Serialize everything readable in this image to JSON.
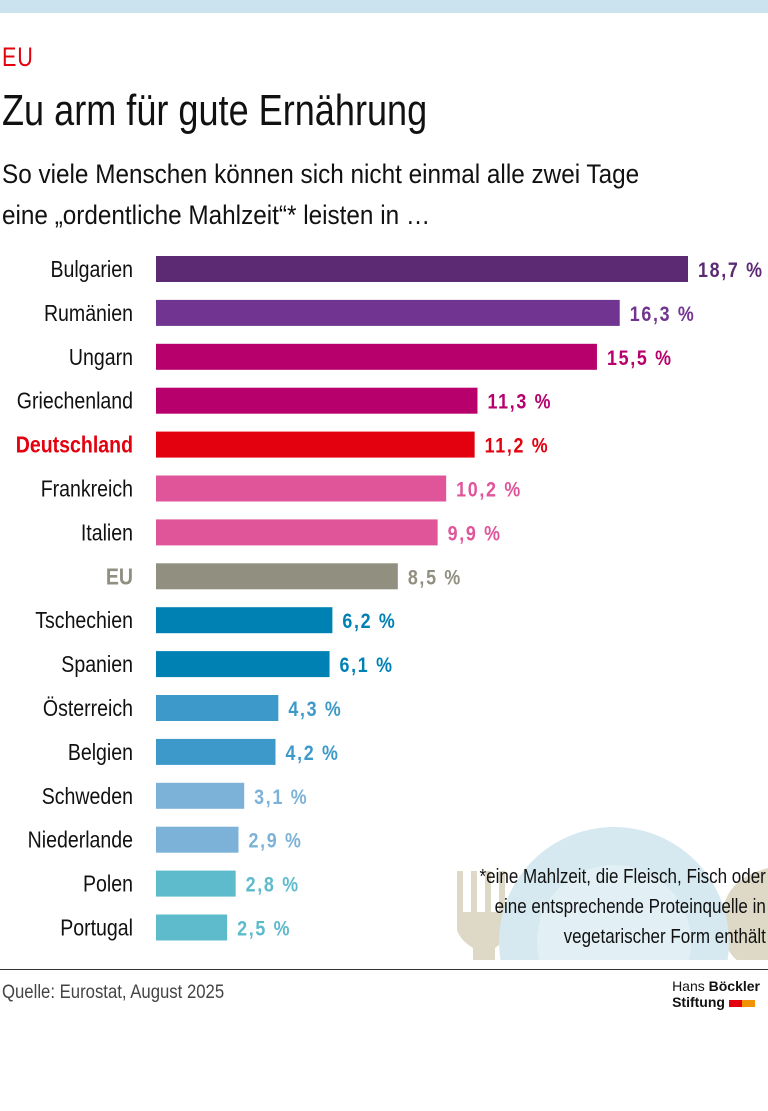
{
  "header": {
    "kicker": "EU",
    "title": "Zu arm für gute Ernährung",
    "subtitle_line1": "So viele Menschen können sich nicht einmal alle zwei Tage",
    "subtitle_line2": "eine „ordentliche Mahlzeit“* leisten in …"
  },
  "chart_data": {
    "type": "bar",
    "orientation": "horizontal",
    "unit": "%",
    "categories": [
      "Bulgarien",
      "Rumänien",
      "Ungarn",
      "Griechenland",
      "Deutschland",
      "Frankreich",
      "Italien",
      "EU",
      "Tschechien",
      "Spanien",
      "Österreich",
      "Belgien",
      "Schweden",
      "Niederlande",
      "Polen",
      "Portugal"
    ],
    "values": [
      18.7,
      16.3,
      15.5,
      11.3,
      11.2,
      10.2,
      9.9,
      8.5,
      6.2,
      6.1,
      4.3,
      4.2,
      3.1,
      2.9,
      2.8,
      2.5
    ],
    "labels": [
      "18,7 %",
      "16,3 %",
      "15,5 %",
      "11,3 %",
      "11,2 %",
      "10,2 %",
      "9,9 %",
      "8,5 %",
      "6,2 %",
      "6,1 %",
      "4,3 %",
      "4,2 %",
      "3,1 %",
      "2,9 %",
      "2,8 %",
      "2,5 %"
    ],
    "colors": [
      "#5c2a73",
      "#713490",
      "#b8006c",
      "#b8006c",
      "#e3000f",
      "#e0559a",
      "#e0559a",
      "#918f80",
      "#0081b4",
      "#0081b4",
      "#3d99c9",
      "#3d99c9",
      "#7db2d8",
      "#7db2d8",
      "#5dbbcc",
      "#5dbbcc"
    ],
    "highlight": [
      "Deutschland",
      "EU"
    ],
    "xlim": [
      0,
      18.7
    ],
    "grid": false
  },
  "footnote": {
    "line1": "*eine Mahlzeit, die Fleisch, Fisch oder",
    "line2": "eine entsprechende Proteinquelle in",
    "line3": "vegetarischer Form enthält"
  },
  "source": "Quelle: Eurostat, August 2025",
  "logo": {
    "line1a": "Hans ",
    "line1b": "Böckler",
    "line2": "Stiftung"
  },
  "illustration": {
    "icons": [
      "fork-icon",
      "plate-icon",
      "knife-icon"
    ],
    "plate_color": "#d6e9f0",
    "cutlery_color": "#ddd9c6"
  }
}
